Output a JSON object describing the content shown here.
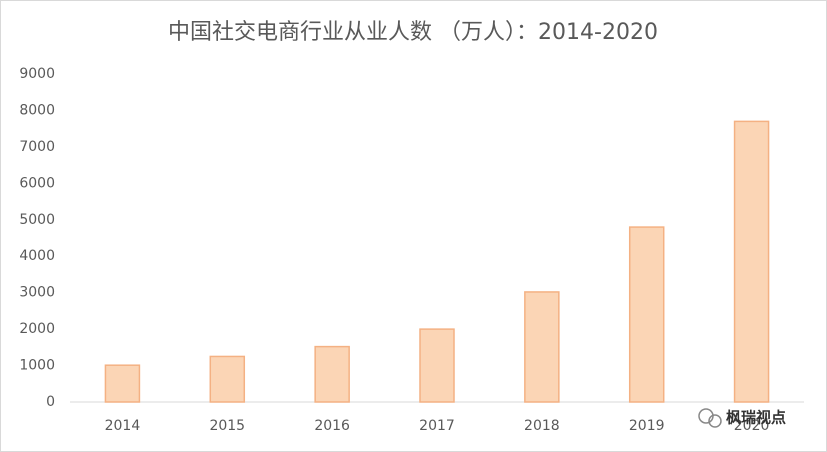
{
  "chart_data": {
    "type": "bar",
    "title": "中国社交电商行业从业人数 （万人）：2014-2020",
    "categories": [
      "2014",
      "2015",
      "2016",
      "2017",
      "2018",
      "2019",
      "2020"
    ],
    "values": [
      1010,
      1250,
      1520,
      2000,
      3020,
      4800,
      7700
    ],
    "color": "#fbd5b5",
    "edge_color": "#f4b183",
    "ylim": [
      0,
      9000
    ],
    "yticks": [
      0,
      1000,
      2000,
      3000,
      4000,
      5000,
      6000,
      7000,
      8000,
      9000
    ],
    "grid": false,
    "annotations": [
      "枫瑞视点"
    ]
  }
}
